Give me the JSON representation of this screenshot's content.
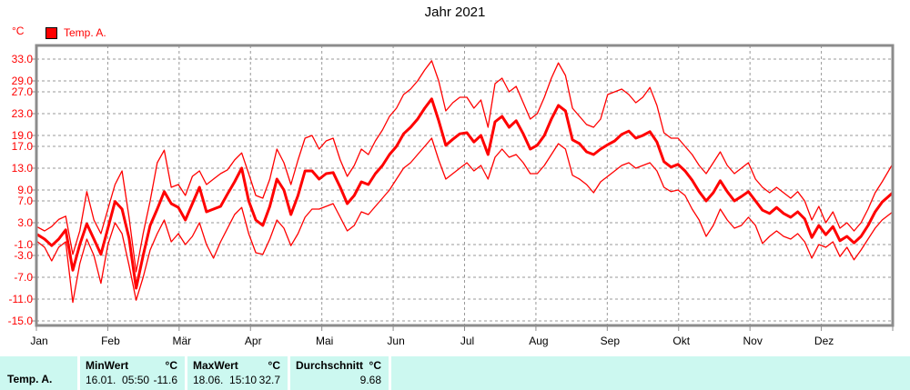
{
  "title": "Jahr 2021",
  "y_axis": {
    "unit_label": "°C",
    "ticks": [
      33,
      29,
      27,
      23,
      19,
      17,
      13,
      9,
      7,
      3,
      -1,
      -3,
      -7,
      -11,
      -15
    ],
    "label_color": "#ff0000"
  },
  "x_axis": {
    "months": [
      "Jan",
      "Feb",
      "Mär",
      "Apr",
      "Mai",
      "Jun",
      "Jul",
      "Aug",
      "Sep",
      "Okt",
      "Nov",
      "Dez"
    ]
  },
  "legend": {
    "label": "Temp. A."
  },
  "colors": {
    "series": "#ff0000",
    "grid": "#999999",
    "border": "#8c8c8c",
    "title": "#000000",
    "table_bg": "#ccf8f0"
  },
  "chart_data": {
    "type": "line",
    "title": "Jahr 2021",
    "ylabel": "°C",
    "x_unit": "day_of_year",
    "x_start_day": 1,
    "x_step_days": 3,
    "days_in_year": 365,
    "xlim_days": [
      0,
      365
    ],
    "ylim": [
      -15.83,
      35.5
    ],
    "grid": true,
    "y_gridlines": [
      33,
      29,
      27,
      23,
      19,
      17,
      13,
      9,
      7,
      3,
      -1,
      -3,
      -7,
      -11,
      -15
    ],
    "x_gridlines_at_month_starts": true,
    "extremes": {
      "min": {
        "date": "16.01.",
        "time": "05:50",
        "value": -11.6
      },
      "max": {
        "date": "18.06.",
        "time": "15:10",
        "value": 32.7
      },
      "mean": 9.68
    },
    "series": [
      {
        "name": "daily-max",
        "role": "max",
        "color": "#ff0000",
        "stroke_width": 1.3,
        "values": [
          2.2,
          1.5,
          2.3,
          3.6,
          4.2,
          -2.8,
          1.5,
          8.7,
          3.5,
          1,
          5.5,
          10,
          12.5,
          4,
          -6,
          1,
          7,
          14,
          16.3,
          9.5,
          10,
          8,
          11.5,
          12.5,
          10,
          11,
          12,
          12.7,
          14.5,
          15.8,
          12,
          8,
          7.5,
          11,
          16.5,
          14,
          10,
          14.5,
          18.5,
          19,
          16.5,
          18,
          18.5,
          14.5,
          11.5,
          13.5,
          16.5,
          15.5,
          18,
          20,
          22.5,
          24,
          26.5,
          27.5,
          29,
          31,
          32.7,
          29,
          23.5,
          25,
          26,
          26,
          24,
          25.5,
          20.5,
          28.5,
          29.5,
          27,
          28,
          25,
          22,
          23,
          26,
          29.5,
          32.3,
          30,
          24,
          22.5,
          21,
          20.5,
          22,
          26.5,
          27,
          27.5,
          26.5,
          25,
          26,
          27.8,
          24.5,
          19.5,
          18.5,
          18.5,
          17,
          15.5,
          13.5,
          12,
          14,
          16,
          13.5,
          12,
          13,
          14,
          11,
          9.5,
          8.5,
          9.5,
          8.5,
          7.5,
          8.7,
          7,
          3.5,
          6,
          3,
          5,
          2,
          3,
          1.5,
          3,
          5.5,
          8.5,
          10.5,
          13.8
        ]
      },
      {
        "name": "daily-mean",
        "role": "avg",
        "color": "#ff0000",
        "stroke_width": 3,
        "values": [
          0.8,
          0,
          -1.2,
          0,
          1.7,
          -5.7,
          -1,
          2.8,
          0,
          -2.8,
          2,
          6.9,
          5.5,
          0.2,
          -9,
          -3,
          2.5,
          5.5,
          8.7,
          6.5,
          5.8,
          3.5,
          6.5,
          9.5,
          5,
          5.5,
          6,
          8.3,
          10.5,
          13,
          7,
          3.5,
          2.5,
          6,
          11,
          9,
          4.5,
          8,
          12.5,
          12.5,
          11,
          12,
          12.2,
          9.5,
          6.5,
          8,
          10.5,
          10,
          12,
          13.5,
          15.5,
          17,
          19.3,
          20.5,
          22,
          24,
          25.7,
          21.7,
          17.2,
          18.3,
          19.3,
          19.5,
          17.8,
          19,
          15.5,
          21.5,
          22.5,
          20.5,
          21.7,
          19.3,
          16.5,
          17.2,
          19,
          22,
          24.5,
          23.5,
          18.2,
          17.5,
          16,
          15.5,
          16.5,
          17.3,
          18,
          19.2,
          19.8,
          18.5,
          19,
          19.7,
          17.8,
          14.2,
          13.2,
          13.7,
          12.5,
          10.8,
          8.7,
          7,
          8.5,
          10.7,
          8.7,
          7,
          7.8,
          8.7,
          7,
          5.3,
          4.7,
          5.8,
          4.7,
          4,
          5,
          3.7,
          0.3,
          2.5,
          0.8,
          2.3,
          -0.3,
          0.5,
          -0.7,
          0.5,
          2.5,
          5,
          6.8,
          8.5
        ]
      },
      {
        "name": "daily-min",
        "role": "min",
        "color": "#ff0000",
        "stroke_width": 1.3,
        "values": [
          -0.5,
          -1.5,
          -4,
          -1.5,
          -0.5,
          -11.6,
          -4.5,
          0,
          -3,
          -8.1,
          -1,
          3,
          1,
          -4.8,
          -11.2,
          -7,
          -2,
          1,
          3.5,
          -0.5,
          1,
          -1,
          0.5,
          3,
          -1,
          -3.5,
          -0.5,
          2,
          4.5,
          5.8,
          1,
          -2.5,
          -2.8,
          0,
          3.5,
          2,
          -1.2,
          1,
          4,
          5.5,
          5.5,
          6,
          6.5,
          4,
          1.5,
          2.5,
          5,
          4.5,
          6,
          7.5,
          9,
          11,
          13,
          14,
          15.5,
          17,
          18.5,
          14.5,
          11,
          12,
          13,
          14,
          12.5,
          13.5,
          11,
          15,
          16.5,
          15,
          15.5,
          14,
          12,
          12,
          13.5,
          15.5,
          17.5,
          16.5,
          11.7,
          11,
          10,
          8.5,
          10.5,
          11.5,
          12.5,
          13.5,
          14,
          13,
          13.5,
          14,
          12.5,
          9.5,
          8.7,
          9,
          8,
          5.5,
          3.5,
          0.5,
          2.5,
          5.5,
          3.5,
          2,
          2.5,
          4,
          2.5,
          -0.8,
          0.5,
          1.5,
          0.5,
          0,
          1,
          -0.5,
          -3.5,
          -1,
          -1.5,
          -0.5,
          -3.2,
          -1.5,
          -3.8,
          -2,
          0,
          2,
          3.5,
          5
        ]
      }
    ]
  },
  "table": {
    "row_label": "Temp. A.",
    "columns": [
      {
        "header": "MinWert",
        "unit": "°C",
        "datetime": "16.01.  05:50",
        "value": "-11.6"
      },
      {
        "header": "MaxWert",
        "unit": "°C",
        "datetime": "18.06.  15:10",
        "value": "32.7"
      },
      {
        "header": "Durchschnitt",
        "unit": "°C",
        "datetime": "",
        "value": "9.68"
      }
    ]
  }
}
